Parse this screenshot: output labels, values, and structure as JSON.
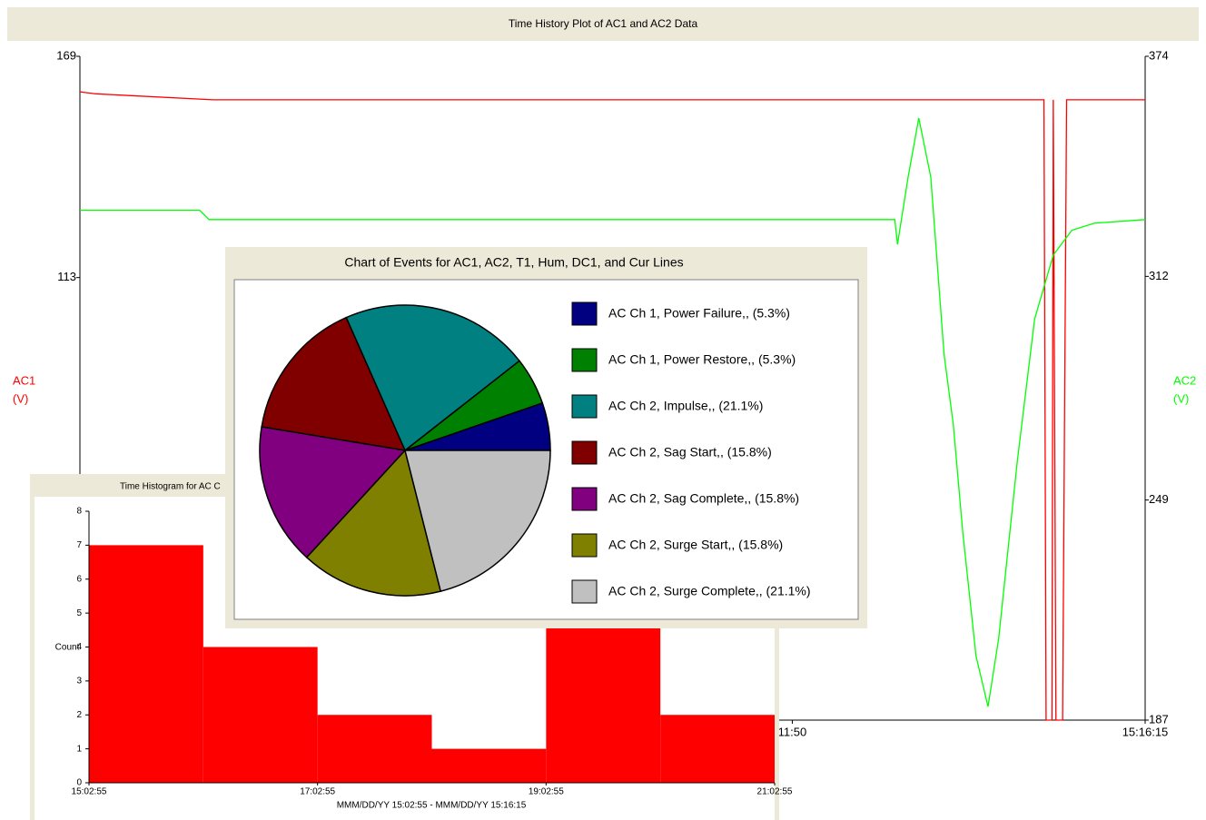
{
  "chart_data": [
    {
      "type": "line",
      "title": "Time History Plot of AC1 and AC2 Data",
      "ylabel": [
        "AC1",
        "(V)"
      ],
      "y2label": [
        "AC2",
        "(V)"
      ],
      "xlim": [
        0,
        800
      ],
      "xticks": [
        {
          "value": 535,
          "label": "11:50"
        },
        {
          "value": 800,
          "label": "15:16:15"
        }
      ],
      "ylim": [
        1,
        169
      ],
      "yticks": [
        113,
        169
      ],
      "y2lim": [
        187,
        374
      ],
      "y2ticks": [
        187,
        249,
        312,
        374
      ],
      "series": [
        {
          "name": "AC1",
          "color": "#ff0000",
          "x": [
            0,
            12,
            100,
            724,
            725.6,
            730,
            731,
            733,
            738,
            741,
            800
          ],
          "values": [
            160,
            159.5,
            158,
            158,
            1,
            1,
            158,
            1,
            1,
            158,
            158
          ]
        },
        {
          "name": "AC2",
          "color": "#00ff00",
          "axis": "y2",
          "x": [
            0,
            90,
            97,
            612,
            614,
            622,
            630,
            639,
            649,
            656,
            663,
            673,
            682,
            690,
            704,
            717,
            731,
            745,
            762,
            800
          ],
          "values": [
            330.6,
            330.6,
            328,
            328,
            321,
            340,
            356.6,
            340,
            290,
            270,
            240,
            205,
            190.8,
            210,
            260,
            300,
            318,
            325,
            327,
            328
          ]
        }
      ]
    },
    {
      "type": "histogram",
      "title": "Time Histogram for AC C",
      "color": "#ff0000",
      "bins": [
        0,
        1,
        2,
        3,
        4,
        5,
        6
      ],
      "values": [
        7,
        4,
        2,
        1,
        5,
        2
      ],
      "xlim": [
        0,
        6
      ],
      "xticks": [
        {
          "value": 0,
          "label": "15:02:55"
        },
        {
          "value": 2,
          "label": "17:02:55"
        },
        {
          "value": 4,
          "label": "19:02:55"
        },
        {
          "value": 6,
          "label": "21:02:55"
        }
      ],
      "ylim": [
        0,
        8
      ],
      "yticks": [
        0,
        1,
        2,
        3,
        4,
        5,
        6,
        7,
        8
      ],
      "ylabel": "Count",
      "xlabel": "MMM/DD/YY 15:02:55 - MMM/DD/YY 15:16:15"
    },
    {
      "type": "pie",
      "title": "Chart of Events for AC1, AC2, T1, Hum, DC1, and Cur Lines",
      "categories": [
        "AC Ch 1, Power Failure,, (5.3%)",
        "AC Ch 1, Power Restore,, (5.3%)",
        "AC Ch 2, Impulse,, (21.1%)",
        "AC Ch 2, Sag Start,, (15.8%)",
        "AC Ch 2, Sag Complete,, (15.8%)",
        "AC Ch 2, Surge Start,, (15.8%)",
        "AC Ch 2, Surge Complete,, (21.1%)"
      ],
      "values": [
        5.3,
        5.3,
        21.1,
        15.8,
        15.8,
        15.8,
        21.1
      ],
      "colors": [
        "#000080",
        "#008000",
        "#008080",
        "#800000",
        "#800080",
        "#808000",
        "#c0c0c0"
      ]
    }
  ]
}
